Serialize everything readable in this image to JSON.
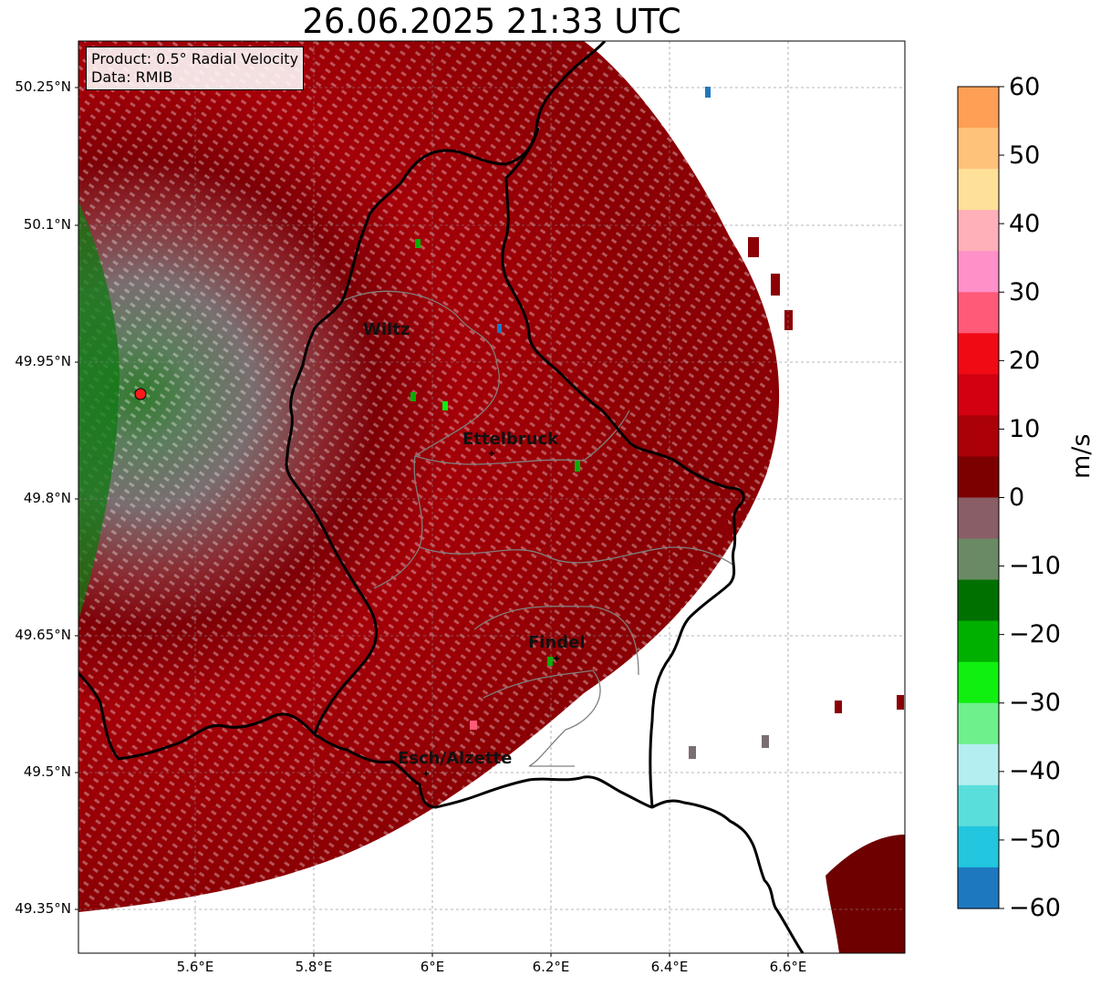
{
  "title": "26.06.2025 21:33 UTC",
  "info": {
    "product": "Product: 0.5° Radial Velocity",
    "data": "Data: RMIB"
  },
  "axes": {
    "y_ticks": [
      "50.25°N",
      "50.1°N",
      "49.95°N",
      "49.8°N",
      "49.65°N",
      "49.5°N",
      "49.35°N"
    ],
    "x_ticks": [
      "5.6°E",
      "5.8°E",
      "6°E",
      "6.2°E",
      "6.4°E",
      "6.6°E"
    ]
  },
  "cities": [
    {
      "name": "Wiltz"
    },
    {
      "name": "Ettelbruck"
    },
    {
      "name": "Findel"
    },
    {
      "name": "Esch/Alzette"
    }
  ],
  "colorbar": {
    "unit": "m/s",
    "ticks": [
      "60",
      "50",
      "40",
      "30",
      "20",
      "10",
      "0",
      "−10",
      "−20",
      "−30",
      "−40",
      "−50",
      "−60"
    ],
    "colors": [
      "#ff9f55",
      "#ffc27a",
      "#ffe099",
      "#ffb0b8",
      "#ff90c8",
      "#ff5a78",
      "#f00a14",
      "#d20010",
      "#ab0008",
      "#7d0000",
      "#8a5e66",
      "#6a8a64",
      "#007000",
      "#00b000",
      "#10f010",
      "#6ef08c",
      "#b4eef0",
      "#5adedc",
      "#22c6de",
      "#1e78c0"
    ]
  },
  "radar": {
    "marker_color": "#ff1a1a",
    "echo_color": "#a40008",
    "background": "#ffffff"
  }
}
